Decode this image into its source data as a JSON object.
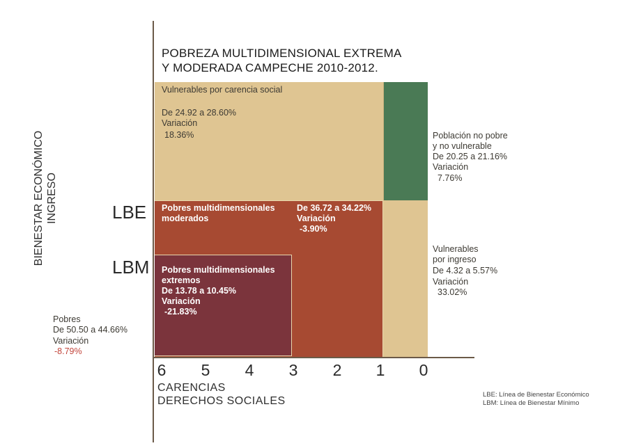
{
  "title": {
    "line1": "POBREZA MULTIDIMENSIONAL EXTREMA",
    "line2": "Y MODERADA CAMPECHE 2010-2012."
  },
  "y_axis": {
    "label_line1": "BIENESTAR ECONÓMICO",
    "label_line2": "INGRESO",
    "lbe": "LBE",
    "lbm": "LBM"
  },
  "x_axis": {
    "label_line1": "CARENCIAS",
    "label_line2": "DERECHOS SOCIALES",
    "ticks": [
      "6",
      "5",
      "4",
      "3",
      "2",
      "1",
      "0"
    ]
  },
  "regions": {
    "vulnerables_social": {
      "label": "Vulnerables por carencia social",
      "range": "De 24.92 a 28.60%",
      "var_label": "Variación",
      "var_value": "18.36%",
      "color": "#dfc592"
    },
    "moderados": {
      "label": "Pobres multidimensionales moderados",
      "range": "De 36.72 a 34.22%",
      "var_label": "Variación",
      "var_value": "-3.90%",
      "color": "#a74a32"
    },
    "extremos": {
      "label": "Pobres multidimensionales extremos",
      "range": "De 13.78 a 10.45%",
      "var_label": "Variación",
      "var_value": "-21.83%",
      "color": "#7b343c"
    },
    "no_pobre": {
      "label_line1": "Población no pobre",
      "label_line2": "y no vulnerable",
      "range": "De 20.25 a 21.16%",
      "var_label": "Variación",
      "var_value": "7.76%",
      "color": "#4a7a55"
    },
    "vulnerables_ingreso": {
      "label_line1": "Vulnerables",
      "label_line2": "por ingreso",
      "range": "De 4.32 a 5.57%",
      "var_label": "Variación",
      "var_value": "33.02%"
    },
    "pobres": {
      "label": "Pobres",
      "range": "De 50.50 a 44.66%",
      "var_label": "Variación",
      "var_value": "-8.79%",
      "var_color": "#c2453b"
    }
  },
  "legend": {
    "lbe": "LBE: Línea de Bienestar Económico",
    "lbm": "LBM: Línea de Bienestar Mínimo"
  }
}
